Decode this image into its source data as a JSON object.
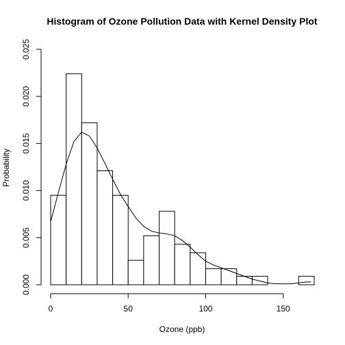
{
  "chart_data": {
    "type": "bar",
    "title": "Histogram of Ozone Pollution Data with Kernel Density Plot",
    "xlabel": "Ozone (ppb)",
    "ylabel": "Probability",
    "xlim": [
      0,
      170
    ],
    "ylim": [
      0,
      0.025
    ],
    "x_ticks": [
      0,
      50,
      100,
      150
    ],
    "y_ticks": [
      0.0,
      0.005,
      0.01,
      0.015,
      0.02,
      0.025
    ],
    "y_tick_labels": [
      "0.000",
      "0.005",
      "0.010",
      "0.015",
      "0.020",
      "0.025"
    ],
    "bins": [
      {
        "x0": 0,
        "x1": 10,
        "value": 0.0095
      },
      {
        "x0": 10,
        "x1": 20,
        "value": 0.0224
      },
      {
        "x0": 20,
        "x1": 30,
        "value": 0.0172
      },
      {
        "x0": 30,
        "x1": 40,
        "value": 0.0121
      },
      {
        "x0": 40,
        "x1": 50,
        "value": 0.0095
      },
      {
        "x0": 50,
        "x1": 60,
        "value": 0.0026
      },
      {
        "x0": 60,
        "x1": 70,
        "value": 0.0052
      },
      {
        "x0": 70,
        "x1": 80,
        "value": 0.0078
      },
      {
        "x0": 80,
        "x1": 90,
        "value": 0.0043
      },
      {
        "x0": 90,
        "x1": 100,
        "value": 0.0034
      },
      {
        "x0": 100,
        "x1": 110,
        "value": 0.0017
      },
      {
        "x0": 110,
        "x1": 120,
        "value": 0.0017
      },
      {
        "x0": 120,
        "x1": 130,
        "value": 0.0009
      },
      {
        "x0": 130,
        "x1": 140,
        "value": 0.0009
      },
      {
        "x0": 140,
        "x1": 150,
        "value": 0.0
      },
      {
        "x0": 150,
        "x1": 160,
        "value": 0.0
      },
      {
        "x0": 160,
        "x1": 170,
        "value": 0.0009
      }
    ],
    "density": {
      "x": [
        0,
        5,
        10,
        15,
        20,
        25,
        30,
        35,
        40,
        45,
        50,
        55,
        60,
        65,
        70,
        75,
        80,
        85,
        90,
        95,
        100,
        105,
        110,
        115,
        120,
        125,
        130,
        135,
        140,
        145,
        150,
        155,
        160,
        165,
        168
      ],
      "y": [
        0.0067,
        0.0098,
        0.0128,
        0.0152,
        0.0162,
        0.0158,
        0.0145,
        0.0129,
        0.0112,
        0.0096,
        0.0083,
        0.0071,
        0.0062,
        0.0057,
        0.0055,
        0.0054,
        0.0052,
        0.0047,
        0.004,
        0.0032,
        0.0025,
        0.0021,
        0.0018,
        0.0015,
        0.0012,
        0.0009,
        0.0006,
        0.0004,
        0.0002,
        0.0001,
        0.0001,
        0.0001,
        0.0002,
        0.0003,
        0.0003
      ]
    }
  }
}
